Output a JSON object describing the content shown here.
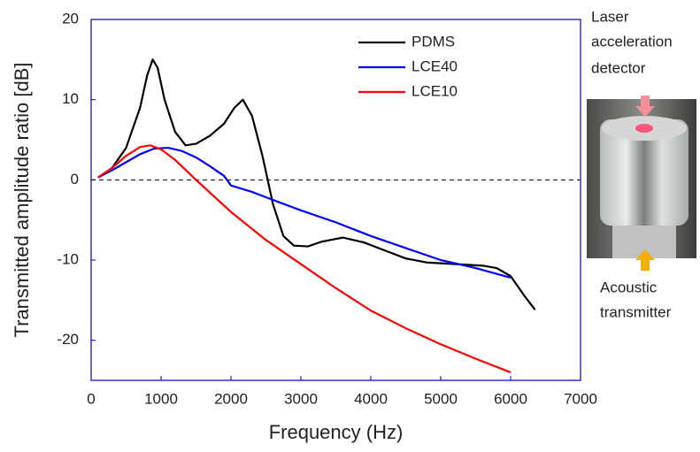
{
  "chart_data": {
    "type": "line",
    "xlabel": "Frequency (Hz)",
    "ylabel": "Transmitted amplitude ratio [dB]",
    "xlim": [
      0,
      7000
    ],
    "ylim": [
      -25,
      20
    ],
    "xticks": [
      0,
      1000,
      2000,
      3000,
      4000,
      5000,
      6000,
      7000
    ],
    "yticks": [
      -20,
      -10,
      0,
      10,
      20
    ],
    "reference_line": 0,
    "legend": "top",
    "series": [
      {
        "name": "PDMS",
        "color": "#000000",
        "x": [
          100,
          300,
          500,
          700,
          800,
          880,
          950,
          1050,
          1200,
          1350,
          1500,
          1700,
          1900,
          2050,
          2170,
          2300,
          2450,
          2600,
          2750,
          2900,
          3100,
          3300,
          3600,
          3900,
          4200,
          4500,
          4800,
          5200,
          5600,
          5800,
          6000,
          6200,
          6350
        ],
        "values": [
          0.3,
          1.5,
          4,
          9,
          13,
          15,
          14,
          10,
          6,
          4.3,
          4.5,
          5.5,
          7,
          9,
          10,
          8,
          3,
          -3,
          -7,
          -8.2,
          -8.3,
          -7.7,
          -7.2,
          -7.8,
          -8.8,
          -9.8,
          -10.3,
          -10.5,
          -10.7,
          -11,
          -12,
          -14.5,
          -16.2
        ]
      },
      {
        "name": "LCE40",
        "color": "#0000ff",
        "x": [
          100,
          300,
          500,
          700,
          900,
          1100,
          1300,
          1500,
          1700,
          1900,
          2000,
          2300,
          2600,
          3000,
          3500,
          4000,
          4500,
          5000,
          5500,
          6000
        ],
        "values": [
          0.3,
          1.2,
          2.2,
          3.2,
          3.9,
          4,
          3.6,
          2.8,
          1.7,
          0.5,
          -0.7,
          -1.5,
          -2.5,
          -3.8,
          -5.3,
          -7,
          -8.5,
          -10,
          -11,
          -12.2
        ]
      },
      {
        "name": "LCE10",
        "color": "#ff0000",
        "x": [
          100,
          300,
          500,
          700,
          850,
          1000,
          1200,
          1500,
          2000,
          2500,
          3000,
          3500,
          4000,
          4500,
          5000,
          5500,
          6000
        ],
        "values": [
          0.3,
          1.5,
          3,
          4.1,
          4.3,
          3.8,
          2.5,
          0,
          -4,
          -7.5,
          -10.5,
          -13.5,
          -16.3,
          -18.5,
          -20.5,
          -22.3,
          -24
        ]
      }
    ],
    "annotations": [
      [
        "Laser",
        "acceleration",
        "detector"
      ],
      [
        "Acoustic",
        "transmitter"
      ]
    ]
  }
}
